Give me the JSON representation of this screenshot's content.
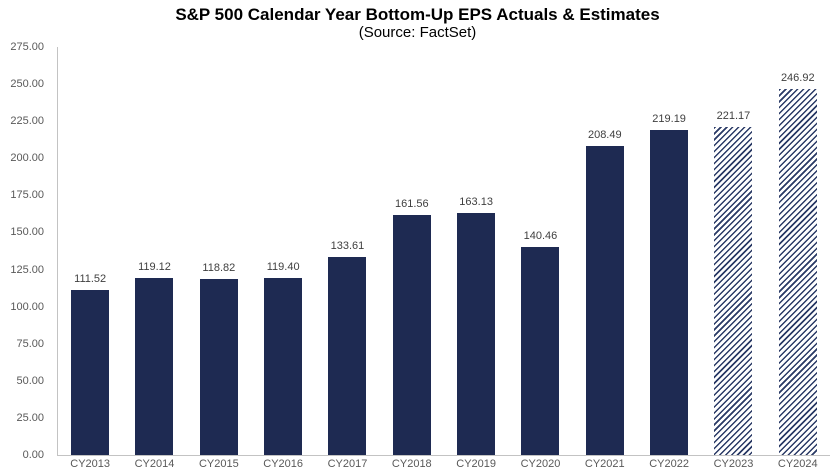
{
  "header": {
    "title": "S&P 500 Calendar Year Bottom-Up EPS Actuals & Estimates",
    "subtitle": "(Source: FactSet)"
  },
  "colors": {
    "bar_solid": "#1e2a52",
    "bar_hatch_stripe": "#2a3a66",
    "axis_line": "#c3c3c3",
    "tick_label": "#595959",
    "value_label": "#3f3f3f",
    "title": "#000000"
  },
  "chart_data": {
    "type": "bar",
    "title": "S&P 500 Calendar Year Bottom-Up EPS Actuals & Estimates",
    "subtitle": "(Source: FactSet)",
    "categories": [
      "CY2013",
      "CY2014",
      "CY2015",
      "CY2016",
      "CY2017",
      "CY2018",
      "CY2019",
      "CY2020",
      "CY2021",
      "CY2022",
      "CY2023",
      "CY2024"
    ],
    "values": [
      111.52,
      119.12,
      118.82,
      119.4,
      133.61,
      161.56,
      163.13,
      140.46,
      208.49,
      219.19,
      221.17,
      246.92
    ],
    "estimate_flags": [
      false,
      false,
      false,
      false,
      false,
      false,
      false,
      false,
      false,
      false,
      true,
      true
    ],
    "value_labels": [
      "111.52",
      "119.12",
      "118.82",
      "119.40",
      "133.61",
      "161.56",
      "163.13",
      "140.46",
      "208.49",
      "219.19",
      "221.17",
      "246.92"
    ],
    "ylim": [
      0,
      275
    ],
    "ytick_step": 25,
    "ytick_labels": [
      "0.00",
      "25.00",
      "50.00",
      "75.00",
      "100.00",
      "125.00",
      "150.00",
      "175.00",
      "200.00",
      "225.00",
      "250.00",
      "275.00"
    ],
    "xlabel": "",
    "ylabel": "",
    "grid": false,
    "legend": "none",
    "bar_style_note": "solid navy = actuals, diagonal-hatched = estimates (CY2023, CY2024)"
  }
}
